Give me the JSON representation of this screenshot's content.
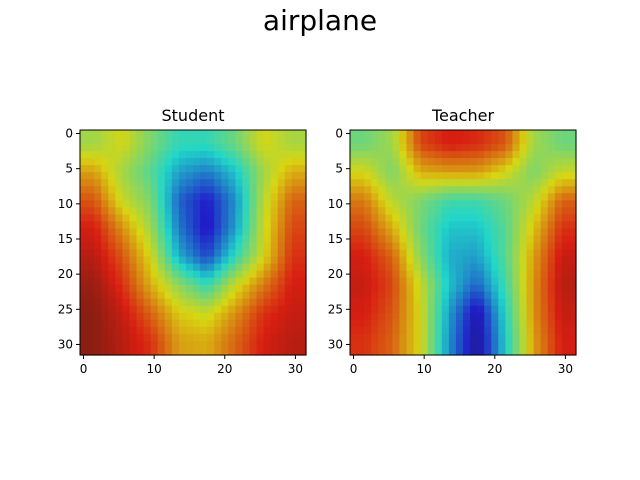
{
  "figure": {
    "title": "airplane"
  },
  "chart_data": [
    {
      "type": "heatmap",
      "title": "Student",
      "xlabel": "",
      "ylabel": "",
      "xlim": [
        -0.5,
        31.5
      ],
      "ylim": [
        31.5,
        -0.5
      ],
      "x_ticks": [
        0,
        10,
        20,
        30
      ],
      "y_ticks": [
        0,
        5,
        10,
        15,
        20,
        25,
        30
      ],
      "colormap": "jet (overlay on image)",
      "description": "32x32 attention heatmap over airplane image",
      "grid_size": 8,
      "values": [
        [
          0.55,
          0.62,
          0.5,
          0.4,
          0.4,
          0.48,
          0.62,
          0.56
        ],
        [
          0.7,
          0.55,
          0.45,
          0.3,
          0.25,
          0.35,
          0.55,
          0.68
        ],
        [
          0.8,
          0.6,
          0.5,
          0.22,
          0.12,
          0.28,
          0.58,
          0.78
        ],
        [
          0.88,
          0.72,
          0.55,
          0.25,
          0.1,
          0.3,
          0.6,
          0.82
        ],
        [
          0.92,
          0.8,
          0.62,
          0.32,
          0.18,
          0.4,
          0.62,
          0.85
        ],
        [
          0.96,
          0.85,
          0.68,
          0.52,
          0.4,
          0.6,
          0.75,
          0.88
        ],
        [
          0.98,
          0.9,
          0.78,
          0.64,
          0.6,
          0.72,
          0.85,
          0.9
        ],
        [
          0.98,
          0.92,
          0.85,
          0.7,
          0.68,
          0.78,
          0.88,
          0.92
        ]
      ]
    },
    {
      "type": "heatmap",
      "title": "Teacher",
      "xlabel": "",
      "ylabel": "",
      "xlim": [
        -0.5,
        31.5
      ],
      "ylim": [
        31.5,
        -0.5
      ],
      "x_ticks": [
        0,
        10,
        20,
        30
      ],
      "y_ticks": [
        0,
        5,
        10,
        15,
        20,
        25,
        30
      ],
      "colormap": "jet (overlay on image)",
      "description": "32x32 attention heatmap over airplane image",
      "grid_size": 8,
      "values": [
        [
          0.48,
          0.55,
          0.82,
          0.88,
          0.86,
          0.8,
          0.55,
          0.48
        ],
        [
          0.62,
          0.5,
          0.68,
          0.7,
          0.7,
          0.62,
          0.5,
          0.6
        ],
        [
          0.75,
          0.58,
          0.5,
          0.42,
          0.42,
          0.48,
          0.58,
          0.78
        ],
        [
          0.82,
          0.68,
          0.48,
          0.35,
          0.35,
          0.45,
          0.65,
          0.85
        ],
        [
          0.88,
          0.78,
          0.52,
          0.32,
          0.3,
          0.45,
          0.7,
          0.9
        ],
        [
          0.9,
          0.82,
          0.6,
          0.35,
          0.22,
          0.42,
          0.72,
          0.92
        ],
        [
          0.88,
          0.8,
          0.62,
          0.3,
          0.08,
          0.38,
          0.72,
          0.9
        ],
        [
          0.85,
          0.78,
          0.62,
          0.28,
          0.05,
          0.36,
          0.7,
          0.88
        ]
      ]
    }
  ]
}
